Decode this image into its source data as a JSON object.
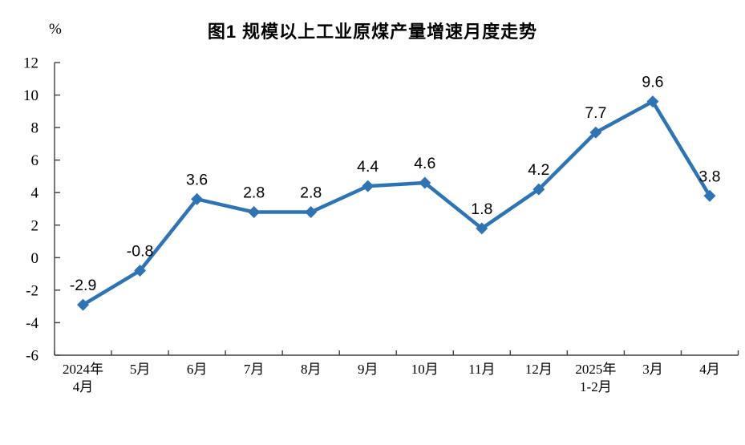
{
  "header": {
    "title": "图1  规模以上工业原煤产量增速月度走势",
    "y_unit": "%"
  },
  "chart_data": {
    "type": "line",
    "title": "图1  规模以上工业原煤产量增速月度走势",
    "ylabel": "%",
    "xlabel": "",
    "categories": [
      "2024年4月",
      "5月",
      "6月",
      "7月",
      "8月",
      "9月",
      "10月",
      "11月",
      "12月",
      "2025年1-2月",
      "3月",
      "4月"
    ],
    "x_tick_lines": [
      [
        "2024年",
        "4月"
      ],
      [
        "5月"
      ],
      [
        "6月"
      ],
      [
        "7月"
      ],
      [
        "8月"
      ],
      [
        "9月"
      ],
      [
        "10月"
      ],
      [
        "11月"
      ],
      [
        "12月"
      ],
      [
        "2025年",
        "1-2月"
      ],
      [
        "3月"
      ],
      [
        "4月"
      ]
    ],
    "series": [
      {
        "name": "原煤产量增速",
        "values": [
          -2.9,
          -0.8,
          3.6,
          2.8,
          2.8,
          4.4,
          4.6,
          1.8,
          4.2,
          7.7,
          9.6,
          3.8
        ],
        "labels": [
          "-2.9",
          "-0.8",
          "3.6",
          "2.8",
          "2.8",
          "4.4",
          "4.6",
          "1.8",
          "4.2",
          "7.7",
          "9.6",
          "3.8"
        ]
      }
    ],
    "ylim": [
      -6,
      12
    ],
    "y_ticks": [
      12,
      10,
      8,
      6,
      4,
      2,
      0,
      -2,
      -4,
      -6
    ],
    "grid": false,
    "legend_position": "none",
    "marker": "diamond",
    "colors": {
      "line": "#2E74B5",
      "marker": "#2E74B5",
      "axis": "#404040",
      "text": "#000000",
      "background": "#FFFFFF"
    }
  }
}
